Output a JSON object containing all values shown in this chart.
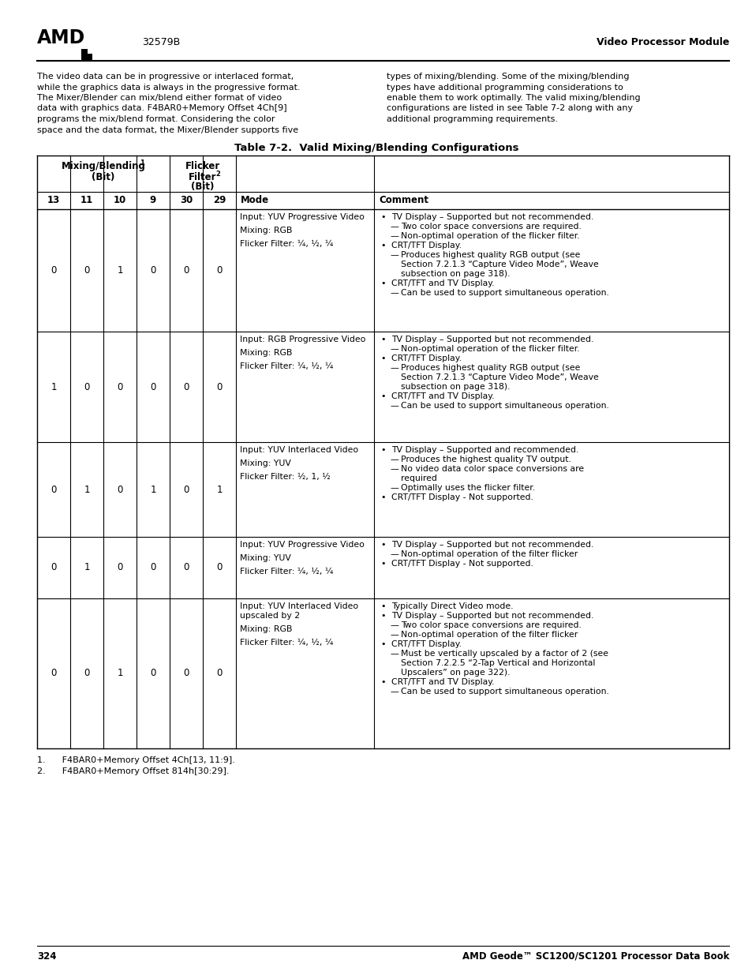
{
  "title": "Table 7-2.  Valid Mixing/Blending Configurations",
  "header_text": "32579B",
  "right_header": "Video Processor Module",
  "body_text_left": [
    "The video data can be in progressive or interlaced format,",
    "while the graphics data is always in the progressive format.",
    "The Mixer/Blender can mix/blend either format of video",
    "data with graphics data. F4BAR0+Memory Offset 4Ch[9]",
    "programs the mix/blend format. Considering the color",
    "space and the data format, the Mixer/Blender supports five"
  ],
  "body_text_right": [
    "types of mixing/blending. Some of the mixing/blending",
    "types have additional programming considerations to",
    "enable them to work optimally. The valid mixing/blending",
    "configurations are listed in see Table 7-2 along with any",
    "additional programming requirements."
  ],
  "footnote1": "1.      F4BAR0+Memory Offset 4Ch[13, 11:9].",
  "footnote2": "2.      F4BAR0+Memory Offset 814h[30:29].",
  "page_left": "324",
  "page_right": "AMD Geode™ SC1200/SC1201 Processor Data Book",
  "rows": [
    {
      "bits": [
        "0",
        "0",
        "1",
        "0",
        "0",
        "0"
      ],
      "mode_lines": [
        "Input: YUV Progressive Video",
        "",
        "Mixing: RGB",
        "",
        "Flicker Filter: ¼, ½, ¼"
      ],
      "comment": [
        [
          "bullet",
          "TV Display – Supported but not recommended."
        ],
        [
          "dash",
          "Two color space conversions are required."
        ],
        [
          "dash",
          "Non-optimal operation of the flicker filter."
        ],
        [
          "bullet",
          "CRT/TFT Display."
        ],
        [
          "dash",
          "Produces highest quality RGB output (see"
        ],
        [
          "cont",
          "Section 7.2.1.3 “Capture Video Mode”, Weave"
        ],
        [
          "cont",
          "subsection on page 318)."
        ],
        [
          "bullet",
          "CRT/TFT and TV Display."
        ],
        [
          "dash",
          "Can be used to support simultaneous operation."
        ]
      ]
    },
    {
      "bits": [
        "1",
        "0",
        "0",
        "0",
        "0",
        "0"
      ],
      "mode_lines": [
        "Input: RGB Progressive Video",
        "",
        "Mixing: RGB",
        "",
        "Flicker Filter: ¼, ½, ¼"
      ],
      "comment": [
        [
          "bullet",
          "TV Display – Supported but not recommended."
        ],
        [
          "dash",
          "Non-optimal operation of the flicker filter."
        ],
        [
          "bullet",
          "CRT/TFT Display."
        ],
        [
          "dash",
          "Produces highest quality RGB output (see"
        ],
        [
          "cont",
          "Section 7.2.1.3 “Capture Video Mode”, Weave"
        ],
        [
          "cont",
          "subsection on page 318)."
        ],
        [
          "bullet",
          "CRT/TFT and TV Display."
        ],
        [
          "dash",
          "Can be used to support simultaneous operation."
        ]
      ]
    },
    {
      "bits": [
        "0",
        "1",
        "0",
        "1",
        "0",
        "1"
      ],
      "mode_lines": [
        "Input: YUV Interlaced Video",
        "",
        "Mixing: YUV",
        "",
        "Flicker Filter: ½, 1, ½"
      ],
      "comment": [
        [
          "bullet",
          "TV Display – Supported and recommended."
        ],
        [
          "dash",
          "Produces the highest quality TV output."
        ],
        [
          "dash",
          "No video data color space conversions are"
        ],
        [
          "cont",
          "required"
        ],
        [
          "dash",
          "Optimally uses the flicker filter."
        ],
        [
          "bullet",
          "CRT/TFT Display - Not supported."
        ]
      ]
    },
    {
      "bits": [
        "0",
        "1",
        "0",
        "0",
        "0",
        "0"
      ],
      "mode_lines": [
        "Input: YUV Progressive Video",
        "",
        "Mixing: YUV",
        "",
        "Flicker Filter: ¼, ½, ¼"
      ],
      "comment": [
        [
          "bullet",
          "TV Display – Supported but not recommended."
        ],
        [
          "dash",
          "Non-optimal operation of the filter flicker"
        ],
        [
          "bullet",
          "CRT/TFT Display - Not supported."
        ]
      ]
    },
    {
      "bits": [
        "0",
        "0",
        "1",
        "0",
        "0",
        "0"
      ],
      "mode_lines": [
        "Input: YUV Interlaced Video",
        "upscaled by 2",
        "",
        "Mixing: RGB",
        "",
        "Flicker Filter: ¼, ½, ¼"
      ],
      "comment": [
        [
          "bullet",
          "Typically Direct Video mode."
        ],
        [
          "bullet",
          "TV Display – Supported but not recommended."
        ],
        [
          "dash",
          "Two color space conversions are required."
        ],
        [
          "dash",
          "Non-optimal operation of the filter flicker"
        ],
        [
          "bullet",
          "CRT/TFT Display."
        ],
        [
          "dash",
          "Must be vertically upscaled by a factor of 2 (see"
        ],
        [
          "cont",
          "Section 7.2.2.5 “2-Tap Vertical and Horizontal"
        ],
        [
          "cont",
          "Upscalers” on page 322)."
        ],
        [
          "bullet",
          "CRT/TFT and TV Display."
        ],
        [
          "dash",
          "Can be used to support simultaneous operation."
        ]
      ]
    }
  ]
}
